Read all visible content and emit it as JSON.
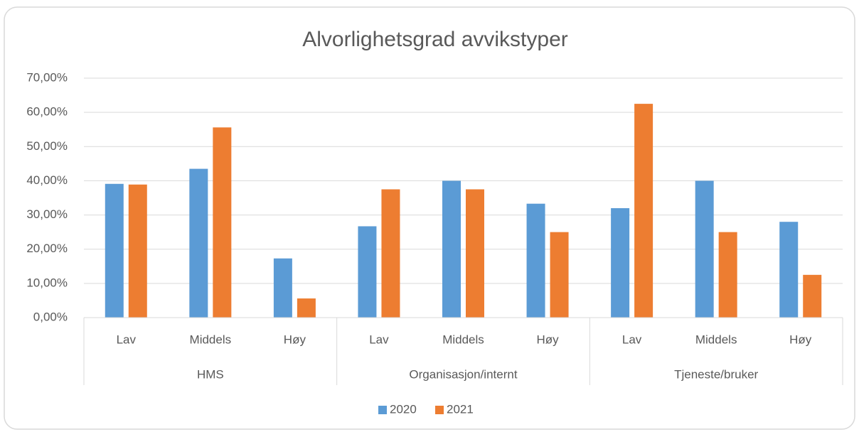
{
  "chart_data": {
    "type": "bar",
    "title": "Alvorlighetsgrad avvikstyper",
    "groups": [
      "HMS",
      "Organisasjon/internt",
      "Tjeneste/bruker"
    ],
    "categories": [
      "Lav",
      "Middels",
      "Høy",
      "Lav",
      "Middels",
      "Høy",
      "Lav",
      "Middels",
      "Høy"
    ],
    "series": [
      {
        "name": "2020",
        "color": "#5b9bd5",
        "values": [
          39.1,
          43.5,
          17.3,
          26.7,
          40.0,
          33.3,
          32.0,
          40.0,
          28.0
        ]
      },
      {
        "name": "2021",
        "color": "#ed7d31",
        "values": [
          38.9,
          55.6,
          5.6,
          37.5,
          37.5,
          25.0,
          62.5,
          25.0,
          12.5
        ]
      }
    ],
    "ylim": [
      0,
      70
    ],
    "yticks": [
      {
        "value": 0,
        "label": "0,00%"
      },
      {
        "value": 10,
        "label": "10,00%"
      },
      {
        "value": 20,
        "label": "20,00%"
      },
      {
        "value": 30,
        "label": "30,00%"
      },
      {
        "value": 40,
        "label": "40,00%"
      },
      {
        "value": 50,
        "label": "50,00%"
      },
      {
        "value": 60,
        "label": "60,00%"
      },
      {
        "value": 70,
        "label": "70,00%"
      }
    ],
    "grid": true,
    "legend": "bottom"
  }
}
